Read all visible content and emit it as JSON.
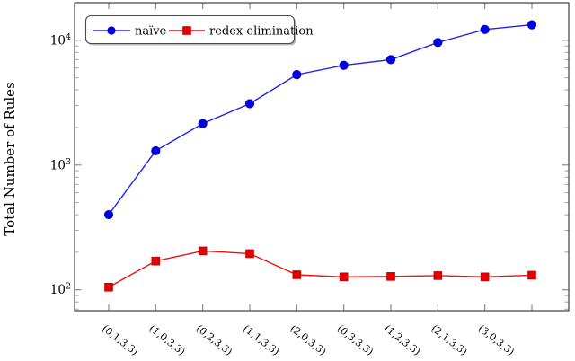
{
  "chart_data": {
    "type": "line",
    "title": "",
    "xlabel": "",
    "ylabel": "Total Number of Rules",
    "y_scale": "log",
    "ylim": [
      68,
      20000
    ],
    "y_major_ticks": [
      100,
      1000,
      10000
    ],
    "y_major_tick_labels": [
      "10^2",
      "10^3",
      "10^4"
    ],
    "grid": false,
    "legend_position": "top-left",
    "categories": [
      "(0,1,3,3)",
      "(1,0,3,3)",
      "(0,2,3,3)",
      "(1,1,3,3)",
      "(2,0,3,3)",
      "(0,3,3,3)",
      "(1,2,3,3)",
      "(2,1,3,3)",
      "(3,0,3,3)",
      ""
    ],
    "series": [
      {
        "name": "naïve",
        "marker": "circle",
        "color": "#0000dd",
        "line_color": "#2222ee",
        "values": [
          400,
          1300,
          2150,
          3100,
          5300,
          6300,
          7000,
          9600,
          12200,
          13300
        ]
      },
      {
        "name": "redex elimination",
        "marker": "square",
        "color": "#e60000",
        "line_color": "#ee1111",
        "values": [
          105,
          170,
          205,
          195,
          132,
          127,
          128,
          130,
          127,
          131
        ]
      }
    ],
    "axis_color": "#3f3f3f",
    "tick_color": "#808080",
    "minor_tick_color": "#9a9a9a"
  }
}
